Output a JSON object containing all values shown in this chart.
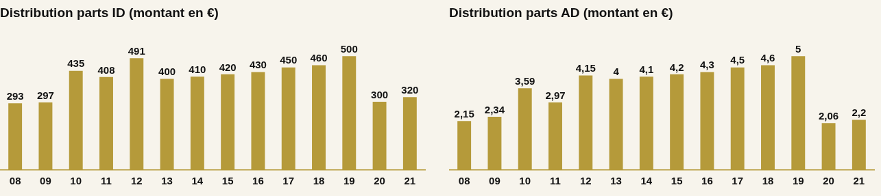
{
  "chart_data": [
    {
      "type": "bar",
      "title": "Distribution parts ID (montant en €)",
      "categories": [
        "08",
        "09",
        "10",
        "11",
        "12",
        "13",
        "14",
        "15",
        "16",
        "17",
        "18",
        "19",
        "20",
        "21"
      ],
      "values": [
        293,
        297,
        435,
        408,
        491,
        400,
        410,
        420,
        430,
        450,
        460,
        500,
        300,
        320
      ],
      "color": "#b59a3a",
      "data_labels": true,
      "grid": false,
      "legend": false
    },
    {
      "type": "bar",
      "title": "Distribution parts AD (montant en €)",
      "categories": [
        "08",
        "09",
        "10",
        "11",
        "12",
        "13",
        "14",
        "15",
        "16",
        "17",
        "18",
        "19",
        "20",
        "21"
      ],
      "values": [
        2.15,
        2.34,
        3.59,
        2.97,
        4.15,
        4,
        4.1,
        4.2,
        4.3,
        4.5,
        4.6,
        5,
        2.06,
        2.2
      ],
      "value_labels": [
        "2,15",
        "2,34",
        "3,59",
        "2,97",
        "4,15",
        "4",
        "4,1",
        "4,2",
        "4,3",
        "4,5",
        "4,6",
        "5",
        "2,06",
        "2,2"
      ],
      "color": "#b59a3a",
      "grid": false,
      "legend": false
    }
  ]
}
